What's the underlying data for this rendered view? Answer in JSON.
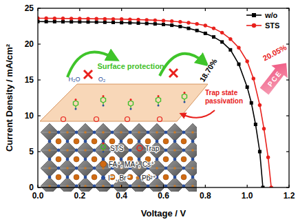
{
  "chart_data": {
    "type": "line",
    "xlabel": "Voltage / V",
    "ylabel": "Current Density / mA/cm²",
    "xlim": [
      0,
      1.2
    ],
    "ylim": [
      0,
      25
    ],
    "xticks": [
      {
        "value": 0,
        "label": "0.0"
      },
      0.2,
      0.4,
      0.6,
      0.8,
      {
        "value": 1,
        "label": "1.0"
      },
      1.2
    ],
    "yticks": [
      0,
      5,
      10,
      15,
      20,
      25
    ],
    "grid": false,
    "legend": "upper right",
    "series": [
      {
        "name": "w/o",
        "color": "#000000",
        "marker": "square",
        "line_style": "solid",
        "x": [
          0,
          0.04,
          0.08,
          0.12,
          0.16,
          0.2,
          0.24,
          0.28,
          0.32,
          0.36,
          0.4,
          0.44,
          0.48,
          0.52,
          0.56,
          0.6,
          0.64,
          0.68,
          0.72,
          0.76,
          0.8,
          0.84,
          0.88,
          0.92,
          0.96,
          1.0,
          1.02,
          1.04,
          1.06,
          1.075
        ],
        "values": [
          23.15,
          23.14,
          23.13,
          23.12,
          23.11,
          23.1,
          23.09,
          23.07,
          23.05,
          23.03,
          23.0,
          22.97,
          22.93,
          22.88,
          22.82,
          22.74,
          22.63,
          22.45,
          22.2,
          21.9,
          21.5,
          21.0,
          20.3,
          19.2,
          17.2,
          14.0,
          11.8,
          8.8,
          5.0,
          0
        ]
      },
      {
        "name": "STS",
        "color": "#e8201c",
        "marker": "circle",
        "line_style": "solid",
        "x": [
          0,
          0.04,
          0.08,
          0.12,
          0.16,
          0.2,
          0.24,
          0.28,
          0.32,
          0.36,
          0.4,
          0.44,
          0.48,
          0.52,
          0.56,
          0.6,
          0.64,
          0.68,
          0.72,
          0.76,
          0.8,
          0.84,
          0.88,
          0.92,
          0.96,
          1.0,
          1.03,
          1.06,
          1.08,
          1.1,
          1.115
        ],
        "values": [
          23.6,
          23.6,
          23.59,
          23.58,
          23.57,
          23.56,
          23.55,
          23.54,
          23.52,
          23.5,
          23.48,
          23.45,
          23.42,
          23.38,
          23.33,
          23.27,
          23.2,
          23.1,
          22.98,
          22.82,
          22.6,
          22.2,
          21.6,
          20.7,
          19.5,
          17.6,
          15.2,
          11.5,
          8.2,
          4.2,
          0
        ]
      }
    ],
    "annotations": {
      "pce": [
        "18.70%",
        "20.05%"
      ],
      "pce_arrow": "PCE",
      "surface_protection": "Surface protection",
      "molecules": [
        "H₂O",
        "O₂"
      ],
      "trap_passivation": "Trap state passivation",
      "legend_items": [
        "STS",
        "Trap",
        "FA⁺, MA⁺, Cs⁺",
        "I⁻ , Br⁻",
        "Pb²⁺"
      ]
    }
  }
}
